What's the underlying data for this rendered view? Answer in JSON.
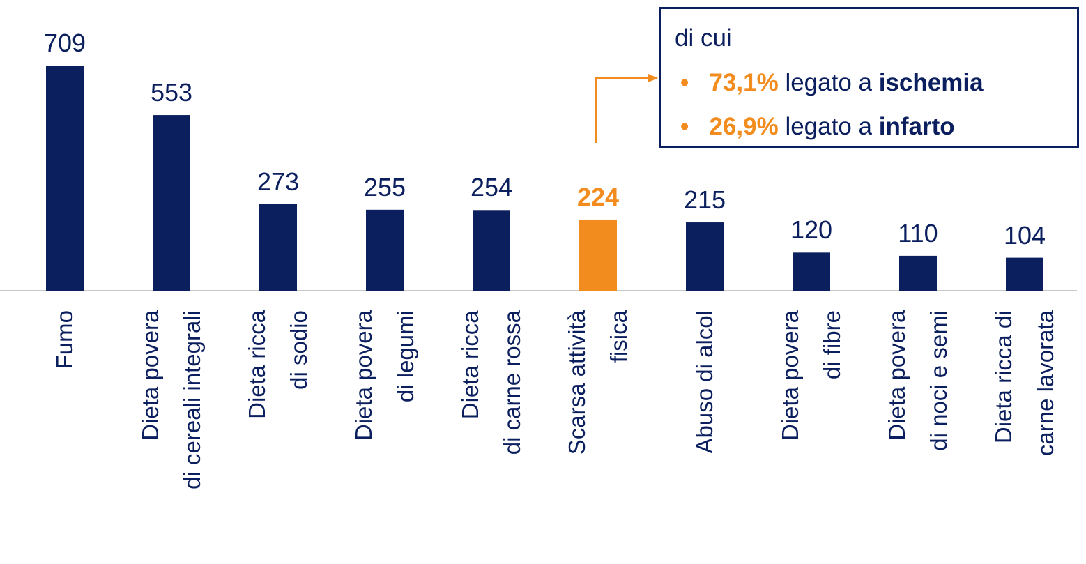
{
  "chart_data": {
    "type": "bar",
    "categories": [
      "Fumo",
      "Dieta povera\ndi cereali integrali",
      "Dieta ricca\ndi sodio",
      "Dieta povera\ndi legumi",
      "Dieta ricca\ndi carne rossa",
      "Scarsa attività\nfisica",
      "Abuso di alcol",
      "Dieta povera\ndi fibre",
      "Dieta povera\ndi noci e semi",
      "Dieta ricca di\ncarne lavorata"
    ],
    "values": [
      709,
      553,
      273,
      255,
      254,
      224,
      215,
      120,
      110,
      104
    ],
    "colors": [
      "#0b1f5e",
      "#0b1f5e",
      "#0b1f5e",
      "#0b1f5e",
      "#0b1f5e",
      "#f28c1e",
      "#0b1f5e",
      "#0b1f5e",
      "#0b1f5e",
      "#0b1f5e"
    ],
    "highlight": 5,
    "annotation": {
      "title": "di cui",
      "items": [
        {
          "share": "73,1%",
          "text": "legato a",
          "cause": "ischemia"
        },
        {
          "share": "26,9%",
          "text": "legato a",
          "cause": "infarto"
        }
      ]
    }
  }
}
